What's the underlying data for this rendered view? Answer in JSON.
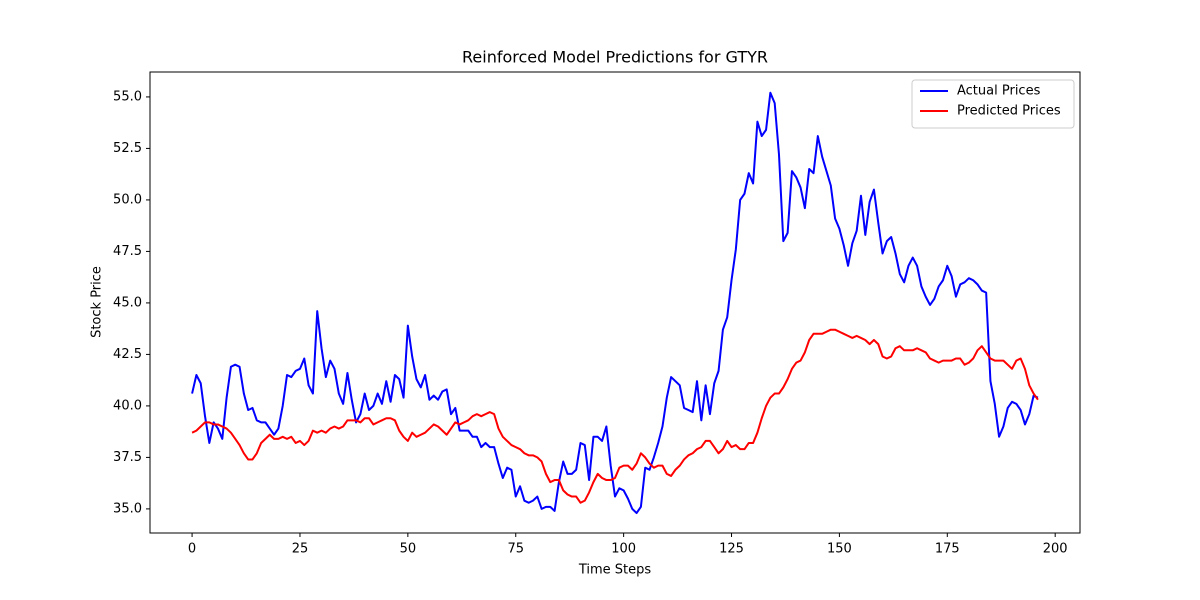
{
  "chart_data": {
    "type": "line",
    "title": "Reinforced Model Predictions for GTYR",
    "x_label": "Time Steps",
    "y_label": "Stock Price",
    "x": [
      0,
      1,
      2,
      3,
      4,
      5,
      6,
      7,
      8,
      9,
      10,
      11,
      12,
      13,
      14,
      15,
      16,
      17,
      18,
      19,
      20,
      21,
      22,
      23,
      24,
      25,
      26,
      27,
      28,
      29,
      30,
      31,
      32,
      33,
      34,
      35,
      36,
      37,
      38,
      39,
      40,
      41,
      42,
      43,
      44,
      45,
      46,
      47,
      48,
      49,
      50,
      51,
      52,
      53,
      54,
      55,
      56,
      57,
      58,
      59,
      60,
      61,
      62,
      63,
      64,
      65,
      66,
      67,
      68,
      69,
      70,
      71,
      72,
      73,
      74,
      75,
      76,
      77,
      78,
      79,
      80,
      81,
      82,
      83,
      84,
      85,
      86,
      87,
      88,
      89,
      90,
      91,
      92,
      93,
      94,
      95,
      96,
      97,
      98,
      99,
      100,
      101,
      102,
      103,
      104,
      105,
      106,
      107,
      108,
      109,
      110,
      111,
      112,
      113,
      114,
      115,
      116,
      117,
      118,
      119,
      120,
      121,
      122,
      123,
      124,
      125,
      126,
      127,
      128,
      129,
      130,
      131,
      132,
      133,
      134,
      135,
      136,
      137,
      138,
      139,
      140,
      141,
      142,
      143,
      144,
      145,
      146,
      147,
      148,
      149,
      150,
      151,
      152,
      153,
      154,
      155,
      156,
      157,
      158,
      159,
      160,
      161,
      162,
      163,
      164,
      165,
      166,
      167,
      168,
      169,
      170,
      171,
      172,
      173,
      174,
      175,
      176,
      177,
      178,
      179,
      180,
      181,
      182,
      183,
      184,
      185,
      186,
      187,
      188,
      189,
      190,
      191,
      192,
      193,
      194,
      195,
      196
    ],
    "series": [
      {
        "name": "Actual Prices",
        "color": "#0000ff",
        "values": [
          40.6,
          41.5,
          41.1,
          39.5,
          38.2,
          39.2,
          38.9,
          38.4,
          40.4,
          41.9,
          42.0,
          41.9,
          40.6,
          39.8,
          39.9,
          39.3,
          39.2,
          39.2,
          38.9,
          38.6,
          38.9,
          40.0,
          41.5,
          41.4,
          41.7,
          41.8,
          42.3,
          41.0,
          40.6,
          44.6,
          42.8,
          41.4,
          42.2,
          41.8,
          40.6,
          40.1,
          41.6,
          40.3,
          39.2,
          39.6,
          40.6,
          39.8,
          40.0,
          40.6,
          40.1,
          41.2,
          40.2,
          41.5,
          41.3,
          40.4,
          43.9,
          42.4,
          41.3,
          40.9,
          41.5,
          40.3,
          40.5,
          40.3,
          40.7,
          40.8,
          39.6,
          39.9,
          38.8,
          38.8,
          38.8,
          38.5,
          38.5,
          38.0,
          38.2,
          38.0,
          38.0,
          37.2,
          36.5,
          37.0,
          36.9,
          35.6,
          36.1,
          35.4,
          35.3,
          35.4,
          35.6,
          35.0,
          35.1,
          35.1,
          34.9,
          36.3,
          37.3,
          36.7,
          36.7,
          36.9,
          38.2,
          38.1,
          36.4,
          38.5,
          38.5,
          38.3,
          39.0,
          37.1,
          35.6,
          36.0,
          35.9,
          35.5,
          35.0,
          34.8,
          35.1,
          37.0,
          36.9,
          37.5,
          38.2,
          39.0,
          40.4,
          41.4,
          41.2,
          41.0,
          39.9,
          39.8,
          39.7,
          41.2,
          39.3,
          41.0,
          39.6,
          41.1,
          41.7,
          43.7,
          44.3,
          46.1,
          47.6,
          50.0,
          50.3,
          51.3,
          50.8,
          53.8,
          53.1,
          53.4,
          55.2,
          54.7,
          52.2,
          48.0,
          48.4,
          51.4,
          51.1,
          50.6,
          49.6,
          51.5,
          51.3,
          53.1,
          52.1,
          51.4,
          50.7,
          49.1,
          48.6,
          47.8,
          46.8,
          47.9,
          48.5,
          50.2,
          48.3,
          49.9,
          50.5,
          48.9,
          47.4,
          48.0,
          48.2,
          47.4,
          46.4,
          46.0,
          46.8,
          47.2,
          46.8,
          45.8,
          45.3,
          44.9,
          45.2,
          45.8,
          46.1,
          46.8,
          46.3,
          45.3,
          45.9,
          46.0,
          46.2,
          46.1,
          45.9,
          45.6,
          45.5,
          41.2,
          40.1,
          38.5,
          39.0,
          39.9,
          40.2,
          40.1,
          39.8,
          39.1,
          39.6,
          40.5,
          40.4
        ]
      },
      {
        "name": "Predicted Prices",
        "color": "#ff0000",
        "values": [
          38.7,
          38.8,
          39.0,
          39.2,
          39.2,
          39.1,
          39.1,
          39.0,
          38.9,
          38.7,
          38.4,
          38.1,
          37.7,
          37.4,
          37.4,
          37.7,
          38.2,
          38.4,
          38.6,
          38.4,
          38.4,
          38.5,
          38.4,
          38.5,
          38.2,
          38.3,
          38.1,
          38.3,
          38.8,
          38.7,
          38.8,
          38.7,
          38.9,
          39.0,
          38.9,
          39.0,
          39.3,
          39.3,
          39.3,
          39.2,
          39.4,
          39.4,
          39.1,
          39.2,
          39.3,
          39.4,
          39.4,
          39.3,
          38.8,
          38.5,
          38.3,
          38.7,
          38.5,
          38.6,
          38.7,
          38.9,
          39.1,
          39.0,
          38.8,
          38.6,
          38.9,
          39.2,
          39.1,
          39.2,
          39.3,
          39.5,
          39.6,
          39.5,
          39.6,
          39.7,
          39.6,
          38.9,
          38.5,
          38.3,
          38.1,
          38.0,
          37.9,
          37.7,
          37.6,
          37.6,
          37.5,
          37.3,
          36.7,
          36.3,
          36.4,
          36.4,
          35.9,
          35.7,
          35.6,
          35.6,
          35.3,
          35.4,
          35.8,
          36.3,
          36.7,
          36.5,
          36.4,
          36.4,
          36.5,
          37.0,
          37.1,
          37.1,
          36.9,
          37.2,
          37.7,
          37.5,
          37.2,
          37.0,
          37.1,
          37.1,
          36.7,
          36.6,
          36.9,
          37.1,
          37.4,
          37.6,
          37.7,
          37.9,
          38.0,
          38.3,
          38.3,
          38.0,
          37.7,
          37.9,
          38.3,
          38.0,
          38.1,
          37.9,
          37.9,
          38.2,
          38.2,
          38.7,
          39.4,
          40.0,
          40.4,
          40.6,
          40.6,
          40.9,
          41.3,
          41.8,
          42.1,
          42.2,
          42.6,
          43.2,
          43.5,
          43.5,
          43.5,
          43.6,
          43.7,
          43.7,
          43.6,
          43.5,
          43.4,
          43.3,
          43.4,
          43.3,
          43.2,
          43.0,
          43.2,
          43.0,
          42.4,
          42.3,
          42.4,
          42.8,
          42.9,
          42.7,
          42.7,
          42.7,
          42.8,
          42.7,
          42.6,
          42.3,
          42.2,
          42.1,
          42.2,
          42.2,
          42.2,
          42.3,
          42.3,
          42.0,
          42.1,
          42.3,
          42.7,
          42.9,
          42.6,
          42.3,
          42.2,
          42.2,
          42.2,
          42.0,
          41.8,
          42.2,
          42.3,
          41.8,
          41.0,
          40.6,
          40.3
        ]
      }
    ],
    "xlim": [
      -9.75,
      205.75
    ],
    "ylim": [
      33.83,
      56.21
    ],
    "xticks": [
      0,
      25,
      50,
      75,
      100,
      125,
      150,
      175,
      200
    ],
    "yticks": [
      {
        "value": 35,
        "label": "35.0"
      },
      37.5,
      {
        "value": 40,
        "label": "40.0"
      },
      42.5,
      {
        "value": 45,
        "label": "45.0"
      },
      47.5,
      {
        "value": 50,
        "label": "50.0"
      },
      52.5,
      {
        "value": 55,
        "label": "55.0"
      }
    ],
    "legend": "upper right",
    "grid": false
  }
}
